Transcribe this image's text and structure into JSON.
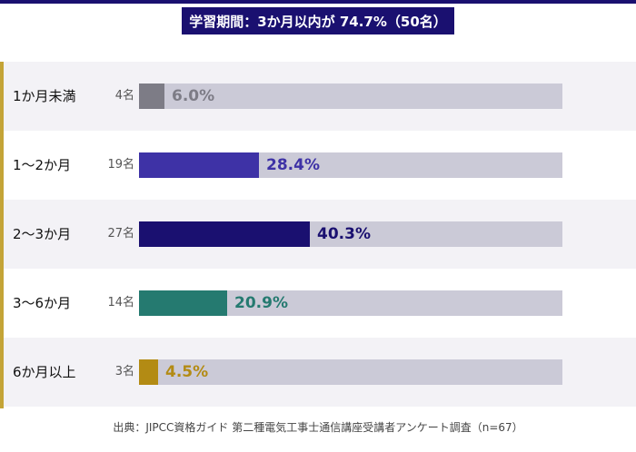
{
  "header": {
    "banner_text": "学習期間：3か月以内が 74.7%（50名）"
  },
  "chart_data": {
    "type": "bar",
    "orientation": "horizontal",
    "categories": [
      "1か月未満",
      "1〜2か月",
      "2〜3か月",
      "3〜6か月",
      "6か月以上"
    ],
    "counts": [
      "4名",
      "19名",
      "27名",
      "14名",
      "3名"
    ],
    "values": [
      6.0,
      28.4,
      40.3,
      20.9,
      4.5
    ],
    "value_labels": [
      "6.0%",
      "28.4%",
      "40.3%",
      "20.9%",
      "4.5%"
    ],
    "xlim": [
      0,
      100
    ],
    "colors": [
      "#7d7c86",
      "#3e32a6",
      "#1a1070",
      "#257a70",
      "#b38b14"
    ],
    "track_color": "#cbcad7",
    "accent_color": "#c4a437"
  },
  "footer": {
    "source": "出典：JIPCC資格ガイド 第二種電気工事士通信講座受講者アンケート調査（n=67）"
  }
}
